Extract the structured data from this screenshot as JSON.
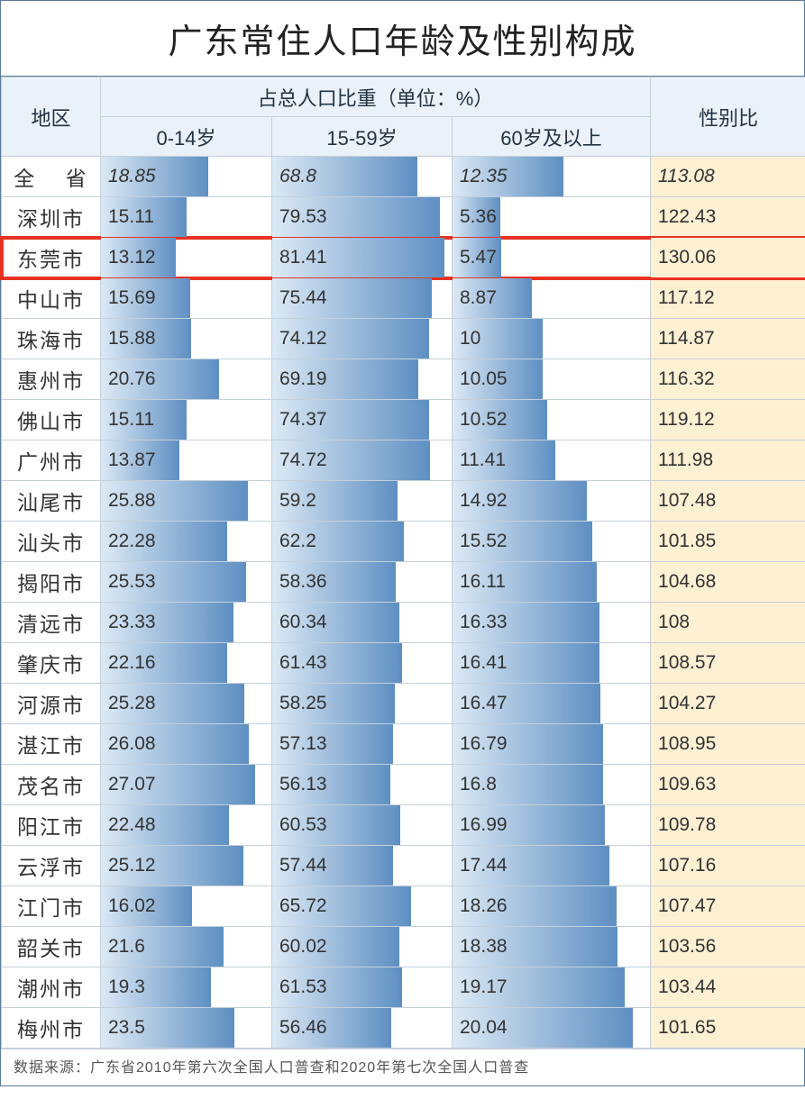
{
  "title": "广东常住人口年龄及性别构成",
  "footer": "数据来源：广东省2010年第六次全国人口普查和2020年第七次全国人口普查",
  "header": {
    "region": "地区",
    "group_title": "占总人口比重（单位：%）",
    "col_a": "0-14岁",
    "col_b": "15-59岁",
    "col_c": "60岁及以上",
    "col_ratio": "性别比"
  },
  "styling": {
    "border_color": "#5a7a9a",
    "cell_border_color": "#c5d0db",
    "header_bg": "#eaf1f8",
    "ratio_col_bg": "#fdf0d3",
    "highlight_border": "#e83323",
    "bar_gradient_from": "#dce9f5",
    "bar_gradient_to": "#5e8fc2",
    "title_fontsize": 38,
    "cell_fontsize": 21,
    "bar_scale": {
      "col_a_max": 30,
      "col_b_max": 85,
      "col_c_max": 22,
      "ratio_max": 135
    }
  },
  "rows": [
    {
      "region": "全 省",
      "a": 18.85,
      "b": 68.8,
      "c": 12.35,
      "ratio": 113.08,
      "provincial": true,
      "highlight": false
    },
    {
      "region": "深圳市",
      "a": 15.11,
      "b": 79.53,
      "c": 5.36,
      "ratio": 122.43,
      "provincial": false,
      "highlight": false
    },
    {
      "region": "东莞市",
      "a": 13.12,
      "b": 81.41,
      "c": 5.47,
      "ratio": 130.06,
      "provincial": false,
      "highlight": true
    },
    {
      "region": "中山市",
      "a": 15.69,
      "b": 75.44,
      "c": 8.87,
      "ratio": 117.12,
      "provincial": false,
      "highlight": false
    },
    {
      "region": "珠海市",
      "a": 15.88,
      "b": 74.12,
      "c": 10,
      "ratio": 114.87,
      "provincial": false,
      "highlight": false
    },
    {
      "region": "惠州市",
      "a": 20.76,
      "b": 69.19,
      "c": 10.05,
      "ratio": 116.32,
      "provincial": false,
      "highlight": false
    },
    {
      "region": "佛山市",
      "a": 15.11,
      "b": 74.37,
      "c": 10.52,
      "ratio": 119.12,
      "provincial": false,
      "highlight": false
    },
    {
      "region": "广州市",
      "a": 13.87,
      "b": 74.72,
      "c": 11.41,
      "ratio": 111.98,
      "provincial": false,
      "highlight": false
    },
    {
      "region": "汕尾市",
      "a": 25.88,
      "b": 59.2,
      "c": 14.92,
      "ratio": 107.48,
      "provincial": false,
      "highlight": false
    },
    {
      "region": "汕头市",
      "a": 22.28,
      "b": 62.2,
      "c": 15.52,
      "ratio": 101.85,
      "provincial": false,
      "highlight": false
    },
    {
      "region": "揭阳市",
      "a": 25.53,
      "b": 58.36,
      "c": 16.11,
      "ratio": 104.68,
      "provincial": false,
      "highlight": false
    },
    {
      "region": "清远市",
      "a": 23.33,
      "b": 60.34,
      "c": 16.33,
      "ratio": 108,
      "provincial": false,
      "highlight": false
    },
    {
      "region": "肇庆市",
      "a": 22.16,
      "b": 61.43,
      "c": 16.41,
      "ratio": 108.57,
      "provincial": false,
      "highlight": false
    },
    {
      "region": "河源市",
      "a": 25.28,
      "b": 58.25,
      "c": 16.47,
      "ratio": 104.27,
      "provincial": false,
      "highlight": false
    },
    {
      "region": "湛江市",
      "a": 26.08,
      "b": 57.13,
      "c": 16.79,
      "ratio": 108.95,
      "provincial": false,
      "highlight": false
    },
    {
      "region": "茂名市",
      "a": 27.07,
      "b": 56.13,
      "c": 16.8,
      "ratio": 109.63,
      "provincial": false,
      "highlight": false
    },
    {
      "region": "阳江市",
      "a": 22.48,
      "b": 60.53,
      "c": 16.99,
      "ratio": 109.78,
      "provincial": false,
      "highlight": false
    },
    {
      "region": "云浮市",
      "a": 25.12,
      "b": 57.44,
      "c": 17.44,
      "ratio": 107.16,
      "provincial": false,
      "highlight": false
    },
    {
      "region": "江门市",
      "a": 16.02,
      "b": 65.72,
      "c": 18.26,
      "ratio": 107.47,
      "provincial": false,
      "highlight": false
    },
    {
      "region": "韶关市",
      "a": 21.6,
      "b": 60.02,
      "c": 18.38,
      "ratio": 103.56,
      "provincial": false,
      "highlight": false
    },
    {
      "region": "潮州市",
      "a": 19.3,
      "b": 61.53,
      "c": 19.17,
      "ratio": 103.44,
      "provincial": false,
      "highlight": false
    },
    {
      "region": "梅州市",
      "a": 23.5,
      "b": 56.46,
      "c": 20.04,
      "ratio": 101.65,
      "provincial": false,
      "highlight": false
    }
  ]
}
